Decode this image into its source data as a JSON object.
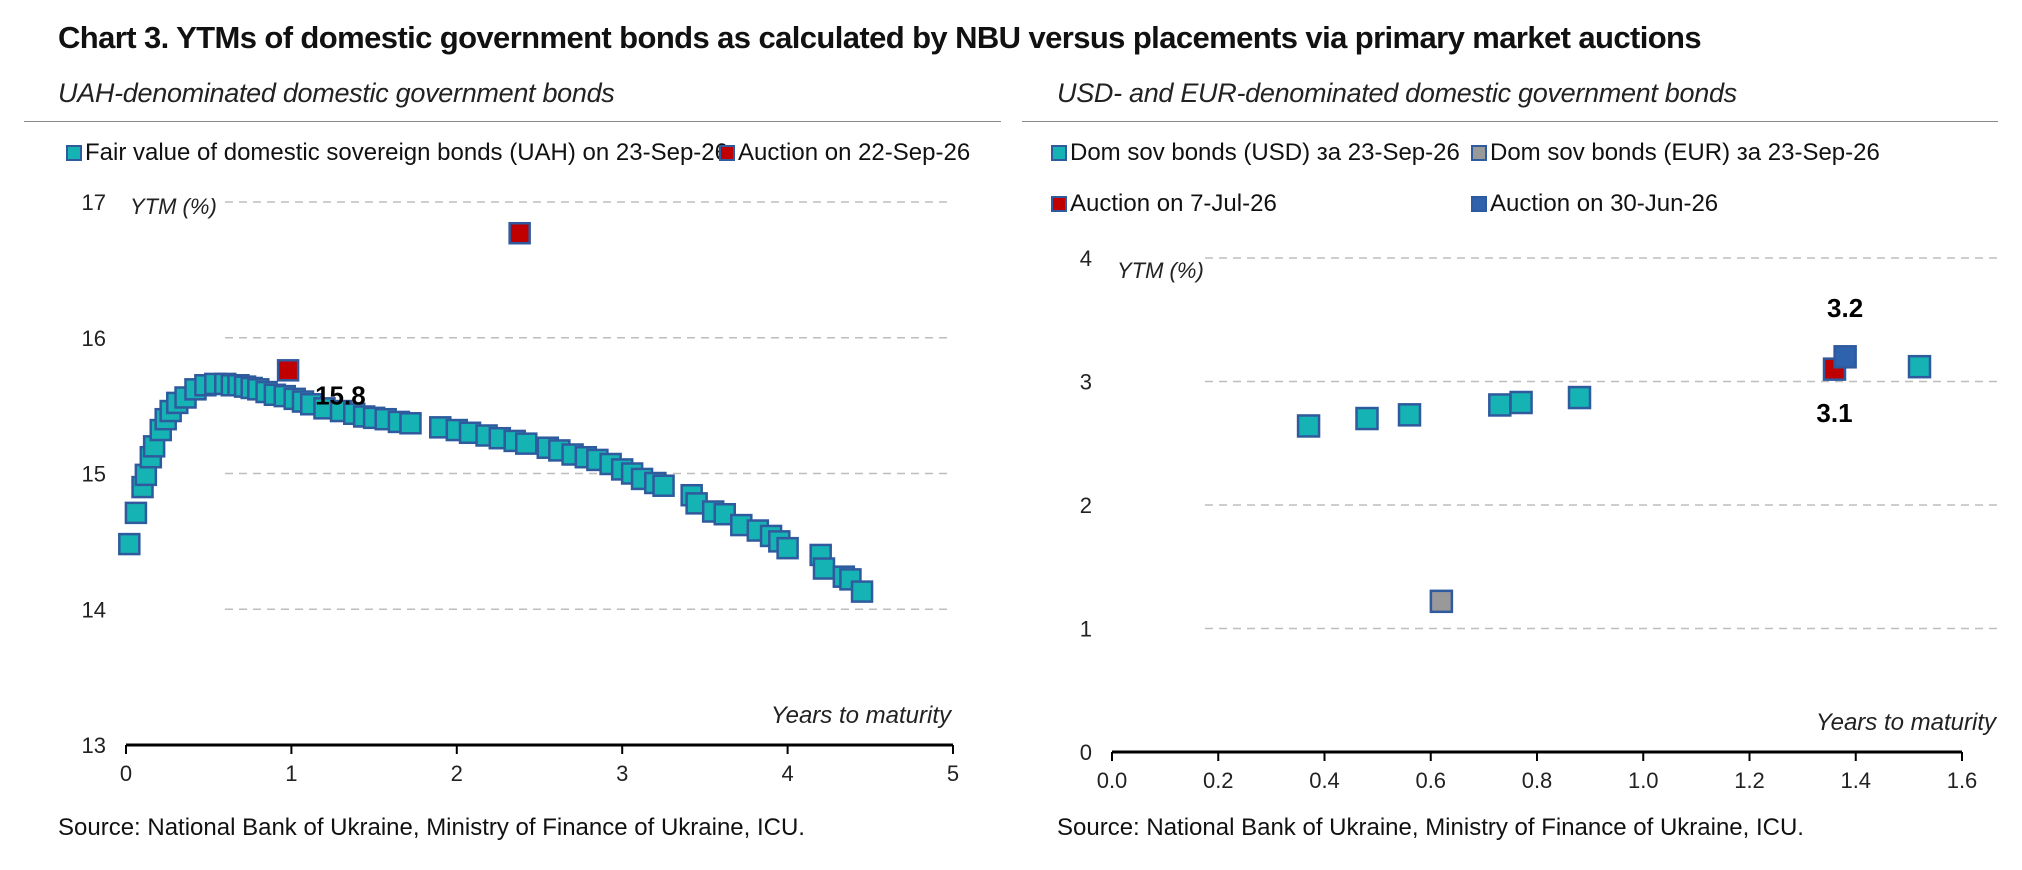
{
  "title": "Chart 3. YTMs of domestic government bonds as calculated by NBU versus placements via primary market auctions",
  "colors": {
    "teal": "#15b3b3",
    "red": "#c00000",
    "grey": "#999999",
    "blue": "#2e62ad",
    "marker_border": "#2f5a9e"
  },
  "chart_data": [
    {
      "type": "scatter",
      "subtitle": "UAH-denominated domestic government bonds",
      "xlabel": "Years to maturity",
      "ylabel": "YTM (%)",
      "xlim": [
        0,
        5
      ],
      "ylim": [
        13,
        17
      ],
      "xticks": [
        "0",
        "1",
        "2",
        "3",
        "4",
        "5"
      ],
      "yticks": [
        "13",
        "14",
        "15",
        "16",
        "17"
      ],
      "grid": "horizontal dashed",
      "legend": [
        "Fair value of domestic sovereign bonds (UAH) on 23-Sep-26",
        "Auction on 22-Sep-26"
      ],
      "source": "Source: National Bank of Ukraine, Ministry of Finance of Ukraine, ICU.",
      "series": [
        {
          "name": "Fair value of domestic sovereign bonds (UAH) on 23-Sep-26",
          "color": "#15b3b3",
          "points": [
            [
              0.02,
              14.48
            ],
            [
              0.06,
              14.71
            ],
            [
              0.1,
              14.9
            ],
            [
              0.12,
              14.99
            ],
            [
              0.15,
              15.12
            ],
            [
              0.17,
              15.2
            ],
            [
              0.21,
              15.32
            ],
            [
              0.24,
              15.4
            ],
            [
              0.27,
              15.46
            ],
            [
              0.31,
              15.52
            ],
            [
              0.36,
              15.56
            ],
            [
              0.42,
              15.62
            ],
            [
              0.48,
              15.65
            ],
            [
              0.54,
              15.66
            ],
            [
              0.6,
              15.66
            ],
            [
              0.64,
              15.65
            ],
            [
              0.68,
              15.65
            ],
            [
              0.72,
              15.64
            ],
            [
              0.76,
              15.63
            ],
            [
              0.8,
              15.62
            ],
            [
              0.85,
              15.6
            ],
            [
              0.9,
              15.58
            ],
            [
              0.96,
              15.57
            ],
            [
              1.02,
              15.55
            ],
            [
              1.07,
              15.53
            ],
            [
              1.12,
              15.51
            ],
            [
              1.2,
              15.48
            ],
            [
              1.3,
              15.46
            ],
            [
              1.38,
              15.44
            ],
            [
              1.44,
              15.42
            ],
            [
              1.5,
              15.41
            ],
            [
              1.57,
              15.4
            ],
            [
              1.65,
              15.38
            ],
            [
              1.72,
              15.37
            ],
            [
              1.9,
              15.34
            ],
            [
              2.0,
              15.32
            ],
            [
              2.08,
              15.3
            ],
            [
              2.18,
              15.28
            ],
            [
              2.26,
              15.26
            ],
            [
              2.35,
              15.24
            ],
            [
              2.42,
              15.22
            ],
            [
              2.55,
              15.19
            ],
            [
              2.62,
              15.17
            ],
            [
              2.7,
              15.14
            ],
            [
              2.78,
              15.12
            ],
            [
              2.85,
              15.1
            ],
            [
              2.93,
              15.07
            ],
            [
              3.0,
              15.03
            ],
            [
              3.06,
              15.0
            ],
            [
              3.12,
              14.96
            ],
            [
              3.2,
              14.93
            ],
            [
              3.25,
              14.91
            ],
            [
              3.42,
              14.84
            ],
            [
              3.45,
              14.78
            ],
            [
              3.55,
              14.72
            ],
            [
              3.62,
              14.7
            ],
            [
              3.72,
              14.62
            ],
            [
              3.82,
              14.58
            ],
            [
              3.9,
              14.54
            ],
            [
              3.95,
              14.5
            ],
            [
              4.0,
              14.45
            ],
            [
              4.2,
              14.4
            ],
            [
              4.22,
              14.3
            ],
            [
              4.34,
              14.24
            ],
            [
              4.38,
              14.22
            ],
            [
              4.45,
              14.13
            ]
          ]
        },
        {
          "name": "Auction on 22-Sep-26",
          "color": "#c00000",
          "points": [
            [
              0.98,
              15.76
            ],
            [
              2.38,
              16.77
            ]
          ]
        }
      ],
      "annotations": [
        {
          "text": "15.8",
          "x": 0.98,
          "y": 15.76
        }
      ]
    },
    {
      "type": "scatter",
      "subtitle": "USD- and EUR-denominated domestic government bonds",
      "xlabel": "Years to maturity",
      "ylabel": "YTM (%)",
      "xlim": [
        0.0,
        1.6
      ],
      "ylim": [
        0,
        4
      ],
      "xticks": [
        "0.0",
        "0.2",
        "0.4",
        "0.6",
        "0.8",
        "1.0",
        "1.2",
        "1.4",
        "1.6"
      ],
      "yticks": [
        "0",
        "1",
        "2",
        "3",
        "4"
      ],
      "grid": "horizontal dashed",
      "legend": [
        "Dom sov bonds (USD) за 23-Sep-26",
        "Dom sov bonds (EUR) за 23-Sep-26",
        "Auction on 7-Jul-26",
        "Auction on 30-Jun-26"
      ],
      "source": "Source: National Bank of Ukraine, Ministry of Finance of Ukraine, ICU.",
      "series": [
        {
          "name": "Dom sov bonds (USD) за 23-Sep-26",
          "color": "#15b3b3",
          "points": [
            [
              0.37,
              2.64
            ],
            [
              0.48,
              2.7
            ],
            [
              0.56,
              2.73
            ],
            [
              0.73,
              2.81
            ],
            [
              0.77,
              2.83
            ],
            [
              0.88,
              2.87
            ],
            [
              1.52,
              3.12
            ]
          ]
        },
        {
          "name": "Dom sov bonds (EUR) за 23-Sep-26",
          "color": "#999999",
          "points": [
            [
              0.62,
              1.22
            ]
          ]
        },
        {
          "name": "Auction on 7-Jul-26",
          "color": "#c00000",
          "points": [
            [
              1.36,
              3.1
            ]
          ]
        },
        {
          "name": "Auction on 30-Jun-26",
          "color": "#2e62ad",
          "points": [
            [
              1.38,
              3.2
            ]
          ]
        }
      ],
      "annotations": [
        {
          "text": "3.2",
          "x": 1.38,
          "y": 3.2
        },
        {
          "text": "3.1",
          "x": 1.36,
          "y": 3.1
        }
      ]
    }
  ]
}
